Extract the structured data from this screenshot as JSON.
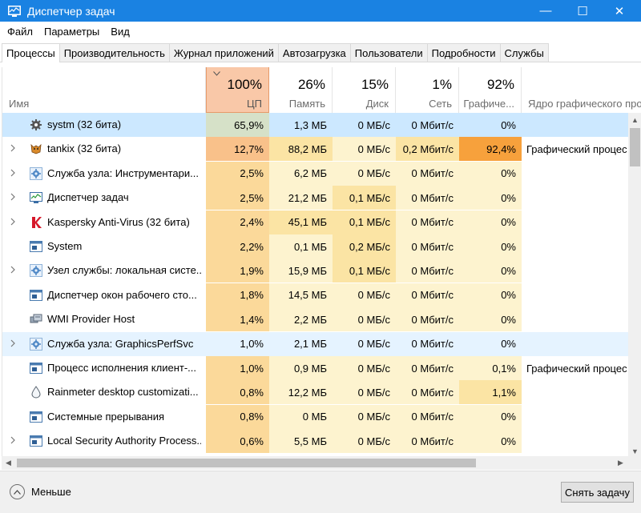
{
  "window": {
    "title": "Диспетчер задач",
    "minimize_glyph": "—",
    "maximize_glyph": "☐",
    "close_glyph": "✕"
  },
  "menu": [
    "Файл",
    "Параметры",
    "Вид"
  ],
  "tabs": [
    "Процессы",
    "Производительность",
    "Журнал приложений",
    "Автозагрузка",
    "Пользователи",
    "Подробности",
    "Службы"
  ],
  "active_tab": "Процессы",
  "columns": {
    "name": {
      "label": "Имя"
    },
    "cpu": {
      "pct": "100%",
      "label": "ЦП"
    },
    "mem": {
      "pct": "26%",
      "label": "Память"
    },
    "disk": {
      "pct": "15%",
      "label": "Диск"
    },
    "net": {
      "pct": "1%",
      "label": "Сеть"
    },
    "gpu": {
      "pct": "92%",
      "label": "Графиче..."
    },
    "gpuengine": {
      "label": "Ядро графического про"
    }
  },
  "rows": [
    {
      "icon": "gear-icon",
      "expand": false,
      "name": "systm (32 бита)",
      "cpu": "65,9%",
      "mem": "1,3 МБ",
      "disk": "0 МБ/с",
      "net": "0 Мбит/с",
      "gpu": "0%",
      "engine": "",
      "state": "selected"
    },
    {
      "icon": "tankix-icon",
      "expand": true,
      "name": "tankix (32 бита)",
      "cpu": "12,7%",
      "mem": "88,2 МБ",
      "disk": "0 МБ/с",
      "net": "0,2 Мбит/с",
      "gpu": "92,4%",
      "engine": "Графический процес",
      "state": ""
    },
    {
      "icon": "service-gear-icon",
      "expand": true,
      "name": "Служба узла: Инструментари...",
      "cpu": "2,5%",
      "mem": "6,2 МБ",
      "disk": "0 МБ/с",
      "net": "0 Мбит/с",
      "gpu": "0%",
      "engine": "",
      "state": ""
    },
    {
      "icon": "taskmgr-icon",
      "expand": true,
      "name": "Диспетчер задач",
      "cpu": "2,5%",
      "mem": "21,2 МБ",
      "disk": "0,1 МБ/с",
      "net": "0 Мбит/с",
      "gpu": "0%",
      "engine": "",
      "state": ""
    },
    {
      "icon": "kaspersky-icon",
      "expand": true,
      "name": "Kaspersky Anti-Virus (32 бита)",
      "cpu": "2,4%",
      "mem": "45,1 МБ",
      "disk": "0,1 МБ/с",
      "net": "0 Мбит/с",
      "gpu": "0%",
      "engine": "",
      "state": ""
    },
    {
      "icon": "window-icon",
      "expand": false,
      "name": "System",
      "cpu": "2,2%",
      "mem": "0,1 МБ",
      "disk": "0,2 МБ/с",
      "net": "0 Мбит/с",
      "gpu": "0%",
      "engine": "",
      "state": ""
    },
    {
      "icon": "service-gear-icon",
      "expand": true,
      "name": "Узел службы: локальная систе...",
      "cpu": "1,9%",
      "mem": "15,9 МБ",
      "disk": "0,1 МБ/с",
      "net": "0 Мбит/с",
      "gpu": "0%",
      "engine": "",
      "state": ""
    },
    {
      "icon": "window-icon",
      "expand": false,
      "name": "Диспетчер окон рабочего сто...",
      "cpu": "1,8%",
      "mem": "14,5 МБ",
      "disk": "0 МБ/с",
      "net": "0 Мбит/с",
      "gpu": "0%",
      "engine": "",
      "state": ""
    },
    {
      "icon": "wmi-icon",
      "expand": false,
      "name": "WMI Provider Host",
      "cpu": "1,4%",
      "mem": "2,2 МБ",
      "disk": "0 МБ/с",
      "net": "0 Мбит/с",
      "gpu": "0%",
      "engine": "",
      "state": ""
    },
    {
      "icon": "service-gear-icon",
      "expand": true,
      "name": "Служба узла: GraphicsPerfSvc",
      "cpu": "1,0%",
      "mem": "2,1 МБ",
      "disk": "0 МБ/с",
      "net": "0 Мбит/с",
      "gpu": "0%",
      "engine": "",
      "state": "hover"
    },
    {
      "icon": "window-icon",
      "expand": false,
      "name": "Процесс исполнения клиент-...",
      "cpu": "1,0%",
      "mem": "0,9 МБ",
      "disk": "0 МБ/с",
      "net": "0 Мбит/с",
      "gpu": "0,1%",
      "engine": "Графический процес",
      "state": ""
    },
    {
      "icon": "rainmeter-icon",
      "expand": false,
      "name": "Rainmeter desktop customizati...",
      "cpu": "0,8%",
      "mem": "12,2 МБ",
      "disk": "0 МБ/с",
      "net": "0 Мбит/с",
      "gpu": "1,1%",
      "engine": "",
      "state": ""
    },
    {
      "icon": "window-icon",
      "expand": false,
      "name": "Системные прерывания",
      "cpu": "0,8%",
      "mem": "0 МБ",
      "disk": "0 МБ/с",
      "net": "0 Мбит/с",
      "gpu": "0%",
      "engine": "",
      "state": ""
    },
    {
      "icon": "window-icon",
      "expand": true,
      "name": "Local Security Authority Process...",
      "cpu": "0,6%",
      "mem": "5,5 МБ",
      "disk": "0 МБ/с",
      "net": "0 Мбит/с",
      "gpu": "0%",
      "engine": "",
      "state": ""
    }
  ],
  "heat_colors": {
    "cpu_hi": "#f9c18a",
    "cpu_mid": "#fbd99a",
    "cpu_low": "#fbe7b3",
    "cell_low": "#fdf3cf",
    "cell_mid": "#fbe4a4",
    "gpu_hot": "#f7a13c",
    "selected": "#cce8ff",
    "accent": "#1a82e2"
  },
  "footer": {
    "fewer_label": "Меньше",
    "end_task_label": "Снять задачу"
  }
}
